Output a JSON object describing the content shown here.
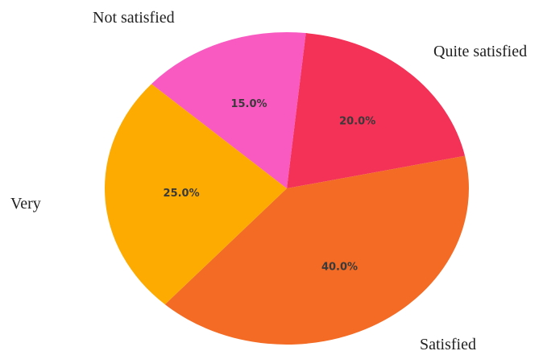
{
  "chart_data": {
    "type": "pie",
    "title": "",
    "slices": [
      {
        "label": "Quite satisfied",
        "value": 20.0,
        "display": "20.0%",
        "color": "#f43157"
      },
      {
        "label": "Satisfied",
        "value": 40.0,
        "display": "40.0%",
        "color": "#f36b24"
      },
      {
        "label": "Very",
        "value": 25.0,
        "display": "25.0%",
        "color": "#fdab00"
      },
      {
        "label": "Not satisfied",
        "value": 15.0,
        "display": "15.0%",
        "color": "#f95ac2"
      }
    ],
    "start_angle_deg": 84,
    "direction": "clockwise",
    "legend": "none"
  }
}
